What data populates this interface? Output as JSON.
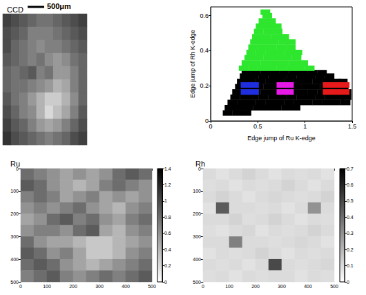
{
  "chart_data": [
    {
      "type": "image",
      "title": "CCD",
      "scale_bar": "500μm",
      "value_range": [
        0,
        1
      ],
      "cells": [
        [
          0.25,
          0.3,
          0.35,
          0.4,
          0.45,
          0.45,
          0.4,
          0.35,
          0.3,
          0.25
        ],
        [
          0.3,
          0.35,
          0.4,
          0.5,
          0.5,
          0.5,
          0.45,
          0.4,
          0.35,
          0.3
        ],
        [
          0.3,
          0.4,
          0.45,
          0.5,
          0.55,
          0.5,
          0.5,
          0.45,
          0.4,
          0.35
        ],
        [
          0.35,
          0.4,
          0.45,
          0.5,
          0.45,
          0.55,
          0.6,
          0.55,
          0.45,
          0.4
        ],
        [
          0.4,
          0.45,
          0.4,
          0.35,
          0.5,
          0.45,
          0.6,
          0.6,
          0.5,
          0.4
        ],
        [
          0.4,
          0.45,
          0.45,
          0.5,
          0.55,
          0.6,
          0.7,
          0.65,
          0.5,
          0.4
        ],
        [
          0.35,
          0.45,
          0.5,
          0.6,
          0.7,
          0.8,
          0.8,
          0.7,
          0.55,
          0.4
        ],
        [
          0.3,
          0.4,
          0.5,
          0.55,
          0.7,
          0.85,
          0.75,
          0.65,
          0.5,
          0.35
        ],
        [
          0.25,
          0.35,
          0.4,
          0.5,
          0.6,
          0.65,
          0.6,
          0.5,
          0.4,
          0.3
        ],
        [
          0.2,
          0.3,
          0.35,
          0.4,
          0.45,
          0.5,
          0.45,
          0.4,
          0.3,
          0.25
        ]
      ]
    },
    {
      "type": "scatter",
      "x_label": "Edge jump of Ru K-edge",
      "y_label": "Edge jump of Rh K-edge",
      "xlim": [
        0,
        1.5
      ],
      "xticks": [
        0,
        0.5,
        1,
        1.5
      ],
      "ylim": [
        0,
        0.65
      ],
      "yticks": [
        0,
        0.2,
        0.4,
        0.6
      ],
      "marker": "square",
      "series": [
        {
          "color": "#000000",
          "x": [
            0.18,
            0.28,
            0.38,
            0.2,
            0.3,
            0.4,
            0.5,
            0.6,
            0.7,
            0.8,
            0.9,
            0.23,
            0.33,
            0.43,
            0.53,
            0.63,
            0.73,
            0.83,
            0.93,
            1.03,
            1.13,
            1.23,
            1.33,
            1.43,
            0.26,
            0.36,
            0.46,
            0.56,
            0.66,
            0.76,
            0.86,
            0.96,
            1.06,
            1.16,
            1.26,
            1.36,
            1.44,
            0.28,
            0.38,
            0.48,
            0.58,
            0.68,
            0.78,
            0.88,
            0.98,
            1.08,
            1.18,
            1.28,
            1.38,
            1.44,
            0.31,
            0.41,
            0.51,
            0.61,
            0.71,
            0.81,
            0.91,
            1.01,
            1.11,
            1.21,
            1.31,
            1.41,
            0.33,
            0.43,
            0.53,
            0.63,
            0.73,
            0.83,
            0.93,
            1.03,
            1.13,
            1.23,
            1.33,
            1.4,
            0.36,
            0.46,
            0.56,
            0.66,
            0.76,
            0.86,
            0.96,
            1.06,
            1.16,
            1.26,
            0.38,
            0.48,
            0.58,
            0.68,
            0.78,
            0.88,
            0.98,
            1.08,
            1.18
          ],
          "y": [
            0.045,
            0.045,
            0.045,
            0.075,
            0.075,
            0.075,
            0.075,
            0.075,
            0.075,
            0.075,
            0.075,
            0.105,
            0.105,
            0.105,
            0.105,
            0.105,
            0.105,
            0.105,
            0.105,
            0.105,
            0.105,
            0.105,
            0.105,
            0.105,
            0.135,
            0.135,
            0.135,
            0.135,
            0.135,
            0.135,
            0.135,
            0.135,
            0.135,
            0.135,
            0.135,
            0.135,
            0.135,
            0.165,
            0.165,
            0.165,
            0.165,
            0.165,
            0.165,
            0.165,
            0.165,
            0.165,
            0.165,
            0.165,
            0.165,
            0.165,
            0.195,
            0.195,
            0.195,
            0.195,
            0.195,
            0.195,
            0.195,
            0.195,
            0.195,
            0.195,
            0.195,
            0.195,
            0.225,
            0.225,
            0.225,
            0.225,
            0.225,
            0.225,
            0.225,
            0.225,
            0.225,
            0.225,
            0.225,
            0.225,
            0.255,
            0.255,
            0.255,
            0.255,
            0.255,
            0.255,
            0.255,
            0.255,
            0.255,
            0.255,
            0.275,
            0.275,
            0.275,
            0.275,
            0.275,
            0.275,
            0.275,
            0.275,
            0.275
          ]
        },
        {
          "color": "#2ee62e",
          "x": [
            0.35,
            0.45,
            0.55,
            0.65,
            0.75,
            0.85,
            0.95,
            1.05,
            0.38,
            0.48,
            0.58,
            0.68,
            0.78,
            0.88,
            0.98,
            0.41,
            0.51,
            0.61,
            0.71,
            0.81,
            0.91,
            0.43,
            0.53,
            0.63,
            0.73,
            0.83,
            0.92,
            0.45,
            0.55,
            0.65,
            0.75,
            0.85,
            0.47,
            0.57,
            0.67,
            0.77,
            0.85,
            0.49,
            0.59,
            0.69,
            0.78,
            0.51,
            0.61,
            0.71,
            0.53,
            0.62,
            0.7,
            0.56,
            0.64,
            0.6,
            0.58
          ],
          "y": [
            0.3,
            0.3,
            0.3,
            0.3,
            0.3,
            0.3,
            0.3,
            0.3,
            0.33,
            0.33,
            0.33,
            0.33,
            0.33,
            0.33,
            0.33,
            0.36,
            0.36,
            0.36,
            0.36,
            0.36,
            0.36,
            0.39,
            0.39,
            0.39,
            0.39,
            0.39,
            0.39,
            0.42,
            0.42,
            0.42,
            0.42,
            0.42,
            0.45,
            0.45,
            0.45,
            0.45,
            0.45,
            0.48,
            0.48,
            0.48,
            0.48,
            0.51,
            0.51,
            0.51,
            0.54,
            0.54,
            0.54,
            0.57,
            0.57,
            0.6,
            0.62
          ]
        },
        {
          "color": "#1f2fe0",
          "x": [
            0.37,
            0.46,
            0.37,
            0.46
          ],
          "y": [
            0.165,
            0.165,
            0.205,
            0.205
          ]
        },
        {
          "color": "#e619e6",
          "x": [
            0.75,
            0.83,
            0.75,
            0.83
          ],
          "y": [
            0.165,
            0.165,
            0.205,
            0.205
          ]
        },
        {
          "color": "#e61a1a",
          "x": [
            1.24,
            1.33,
            1.42,
            1.24,
            1.33,
            1.42
          ],
          "y": [
            0.165,
            0.165,
            0.165,
            0.205,
            0.205,
            0.205
          ]
        }
      ]
    },
    {
      "type": "heatmap",
      "title": "Ru",
      "xlim": [
        0,
        500
      ],
      "xticks": [
        0,
        100,
        200,
        300,
        400,
        500
      ],
      "ylim": [
        0,
        500
      ],
      "yticks": [
        0,
        100,
        200,
        300,
        400,
        500
      ],
      "colorbar_range": [
        0,
        1.4
      ],
      "colorbar_ticks": [
        0,
        0.2,
        0.4,
        0.6,
        0.8,
        1,
        1.2,
        1.4
      ],
      "cells": [
        [
          0.8,
          0.7,
          0.6,
          0.5,
          0.6,
          0.5,
          0.6,
          0.8,
          0.9,
          0.8
        ],
        [
          0.9,
          0.8,
          0.6,
          0.5,
          0.4,
          0.5,
          0.7,
          0.8,
          0.7,
          0.6
        ],
        [
          0.7,
          0.8,
          0.7,
          0.5,
          0.6,
          0.7,
          0.5,
          0.6,
          0.5,
          0.6
        ],
        [
          0.6,
          0.7,
          0.6,
          0.7,
          0.8,
          0.6,
          0.5,
          0.4,
          0.6,
          0.7
        ],
        [
          0.5,
          0.6,
          0.8,
          0.9,
          0.7,
          0.8,
          0.6,
          0.5,
          0.7,
          0.8
        ],
        [
          0.6,
          0.7,
          0.7,
          0.6,
          0.8,
          0.9,
          0.5,
          0.4,
          0.6,
          0.7
        ],
        [
          0.8,
          0.6,
          0.5,
          0.5,
          0.4,
          0.3,
          0.3,
          0.4,
          0.5,
          0.6
        ],
        [
          0.9,
          0.8,
          0.6,
          0.7,
          0.5,
          0.3,
          0.3,
          0.4,
          0.6,
          0.7
        ],
        [
          0.8,
          0.9,
          0.8,
          0.6,
          0.5,
          0.4,
          0.5,
          0.6,
          0.7,
          0.8
        ],
        [
          0.7,
          0.8,
          0.9,
          0.7,
          0.6,
          0.7,
          0.8,
          0.7,
          0.8,
          0.9
        ]
      ]
    },
    {
      "type": "heatmap",
      "title": "Rh",
      "xlim": [
        0,
        500
      ],
      "xticks": [
        0,
        100,
        200,
        300,
        400,
        500
      ],
      "ylim": [
        0,
        500
      ],
      "yticks": [
        0,
        100,
        200,
        300,
        400,
        500
      ],
      "colorbar_range": [
        0,
        0.7
      ],
      "colorbar_ticks": [
        0,
        0.1,
        0.2,
        0.3,
        0.4,
        0.5,
        0.6,
        0.7
      ],
      "cells": [
        [
          0.1,
          0.08,
          0.1,
          0.12,
          0.1,
          0.08,
          0.1,
          0.09,
          0.1,
          0.08
        ],
        [
          0.09,
          0.1,
          0.08,
          0.1,
          0.09,
          0.1,
          0.12,
          0.1,
          0.08,
          0.1
        ],
        [
          0.1,
          0.12,
          0.1,
          0.08,
          0.1,
          0.11,
          0.1,
          0.09,
          0.1,
          0.12
        ],
        [
          0.08,
          0.45,
          0.1,
          0.1,
          0.09,
          0.1,
          0.08,
          0.1,
          0.3,
          0.1
        ],
        [
          0.1,
          0.1,
          0.12,
          0.09,
          0.1,
          0.12,
          0.1,
          0.08,
          0.1,
          0.09
        ],
        [
          0.09,
          0.08,
          0.1,
          0.11,
          0.08,
          0.1,
          0.09,
          0.1,
          0.12,
          0.1
        ],
        [
          0.1,
          0.1,
          0.35,
          0.1,
          0.1,
          0.09,
          0.1,
          0.11,
          0.1,
          0.08
        ],
        [
          0.08,
          0.1,
          0.09,
          0.1,
          0.12,
          0.1,
          0.08,
          0.1,
          0.09,
          0.1
        ],
        [
          0.1,
          0.09,
          0.1,
          0.08,
          0.1,
          0.5,
          0.1,
          0.09,
          0.1,
          0.11
        ],
        [
          0.09,
          0.1,
          0.08,
          0.1,
          0.09,
          0.1,
          0.1,
          0.08,
          0.1,
          0.09
        ]
      ]
    }
  ]
}
